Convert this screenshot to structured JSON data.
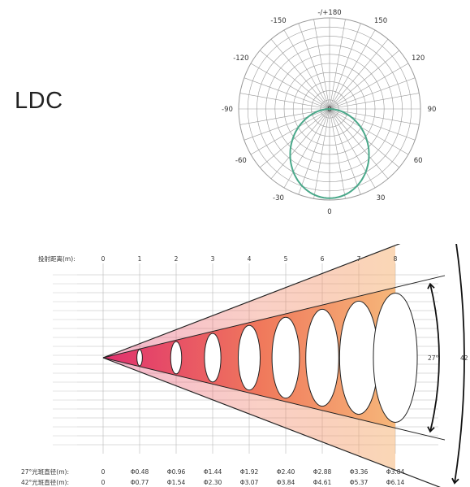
{
  "heading": "LDC",
  "polar": {
    "angle_labels": [
      {
        "text": "-/+180",
        "angle": 180
      },
      {
        "text": "150",
        "angle": 150
      },
      {
        "text": "-150",
        "angle": -150
      },
      {
        "text": "120",
        "angle": 120
      },
      {
        "text": "-120",
        "angle": -120
      },
      {
        "text": "90",
        "angle": 90
      },
      {
        "text": "-90",
        "angle": -90
      },
      {
        "text": "60",
        "angle": 60
      },
      {
        "text": "-60",
        "angle": -60
      },
      {
        "text": "30",
        "angle": 30
      },
      {
        "text": "-30",
        "angle": -30
      },
      {
        "text": "0",
        "angle": 0
      }
    ],
    "center_label": "0",
    "ring_count": 10,
    "spoke_step_deg": 10,
    "curve_color": "#4aa88a",
    "grid_color": "#9a9a9a"
  },
  "beam": {
    "distance_label": "投射距离(m):",
    "distances": [
      "0",
      "1",
      "2",
      "3",
      "4",
      "5",
      "6",
      "7",
      "8"
    ],
    "angle_inner": "27°",
    "angle_outer": "42",
    "spot27_label": "27°光斑直径(m):",
    "spot27": [
      "0",
      "Φ0.48",
      "Φ0.96",
      "Φ1.44",
      "Φ1.92",
      "Φ2.40",
      "Φ2.88",
      "Φ3.36",
      "Φ3.84"
    ],
    "spot42_label": "42°光斑直径(m):",
    "spot42": [
      "0",
      "Φ0.77",
      "Φ1.54",
      "Φ2.30",
      "Φ3.07",
      "Φ3.84",
      "Φ4.61",
      "Φ5.37",
      "Φ6.14"
    ],
    "gradient_colors": [
      "#e0306e",
      "#f07a5c",
      "#f6b77a"
    ]
  }
}
